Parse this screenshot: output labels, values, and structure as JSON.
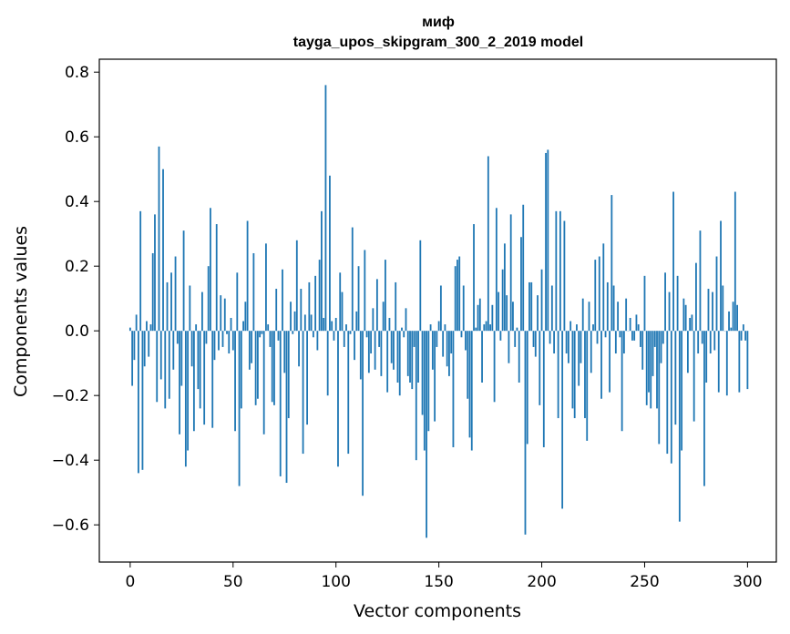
{
  "chart_data": {
    "type": "bar",
    "title": "миф",
    "subtitle": "tayga_upos_skipgram_300_2_2019 model",
    "xlabel": "Vector components",
    "ylabel": "Components values",
    "xlim": [
      -15,
      314
    ],
    "ylim": [
      -0.715,
      0.84
    ],
    "xticks": [
      0,
      50,
      100,
      150,
      200,
      250,
      300
    ],
    "xtick_labels": [
      "0",
      "50",
      "100",
      "150",
      "200",
      "250",
      "300"
    ],
    "yticks": [
      -0.6,
      -0.4,
      -0.2,
      0.0,
      0.2,
      0.4,
      0.6,
      0.8
    ],
    "ytick_labels": [
      "−0.6",
      "−0.4",
      "−0.2",
      "0.0",
      "0.2",
      "0.4",
      "0.6",
      "0.8"
    ],
    "bar_color": "#1f77b4",
    "grid": false,
    "legend": "none",
    "x_start": 0,
    "values": [
      0.01,
      -0.17,
      -0.09,
      0.05,
      -0.44,
      0.37,
      -0.43,
      -0.11,
      0.03,
      -0.08,
      0.02,
      0.24,
      0.36,
      -0.22,
      0.57,
      -0.15,
      0.5,
      -0.24,
      0.15,
      -0.21,
      0.18,
      -0.12,
      0.23,
      -0.04,
      -0.32,
      -0.17,
      0.31,
      -0.42,
      -0.37,
      0.14,
      -0.11,
      -0.31,
      0.02,
      -0.18,
      -0.24,
      0.12,
      -0.29,
      -0.04,
      0.2,
      0.38,
      -0.3,
      -0.09,
      0.33,
      -0.06,
      0.11,
      -0.05,
      0.1,
      -0.01,
      -0.07,
      0.04,
      -0.06,
      -0.31,
      0.18,
      -0.48,
      -0.24,
      0.03,
      0.09,
      0.34,
      -0.12,
      -0.1,
      0.24,
      -0.23,
      -0.21,
      -0.02,
      -0.01,
      -0.32,
      0.27,
      0.02,
      -0.05,
      -0.22,
      -0.23,
      0.13,
      -0.03,
      -0.45,
      0.19,
      -0.13,
      -0.47,
      -0.27,
      0.09,
      -0.01,
      0.06,
      0.28,
      -0.11,
      0.13,
      -0.38,
      0.05,
      -0.29,
      0.15,
      0.05,
      -0.02,
      0.17,
      -0.06,
      0.22,
      0.37,
      0.04,
      0.76,
      -0.2,
      0.48,
      0.03,
      -0.03,
      0.04,
      -0.42,
      0.18,
      0.12,
      -0.05,
      0.02,
      -0.38,
      -0.01,
      0.32,
      -0.09,
      0.06,
      0.2,
      -0.15,
      -0.51,
      0.25,
      -0.02,
      -0.13,
      -0.07,
      0.07,
      -0.12,
      0.16,
      -0.05,
      -0.14,
      0.09,
      0.22,
      -0.19,
      0.04,
      -0.1,
      -0.12,
      0.15,
      -0.16,
      -0.2,
      0.01,
      -0.02,
      0.07,
      -0.14,
      -0.16,
      -0.18,
      -0.05,
      -0.4,
      -0.16,
      0.28,
      -0.26,
      -0.37,
      -0.64,
      -0.31,
      0.02,
      -0.12,
      -0.28,
      -0.05,
      0.03,
      0.14,
      -0.08,
      0.02,
      -0.11,
      -0.14,
      -0.07,
      -0.36,
      0.2,
      0.22,
      0.23,
      -0.02,
      0.14,
      -0.06,
      -0.21,
      -0.33,
      -0.37,
      0.33,
      0.01,
      0.08,
      0.1,
      -0.16,
      0.02,
      0.03,
      0.54,
      0.02,
      0.08,
      -0.22,
      0.38,
      0.12,
      -0.03,
      0.19,
      0.27,
      0.11,
      -0.1,
      0.36,
      0.09,
      -0.05,
      0.01,
      -0.16,
      0.29,
      0.39,
      -0.63,
      -0.35,
      0.15,
      0.15,
      -0.05,
      -0.08,
      0.11,
      -0.23,
      0.19,
      -0.36,
      0.55,
      0.56,
      -0.04,
      0.14,
      -0.07,
      0.37,
      -0.27,
      0.37,
      -0.55,
      0.34,
      -0.07,
      -0.1,
      0.03,
      -0.24,
      -0.27,
      0.02,
      -0.17,
      -0.1,
      0.1,
      -0.27,
      -0.34,
      0.09,
      -0.13,
      0.02,
      0.22,
      -0.04,
      0.23,
      -0.21,
      0.27,
      -0.02,
      0.15,
      -0.19,
      0.42,
      0.14,
      -0.07,
      0.09,
      -0.02,
      -0.31,
      -0.07,
      0.1,
      0.0,
      0.04,
      -0.03,
      -0.03,
      0.05,
      0.02,
      -0.05,
      -0.12,
      0.17,
      -0.23,
      -0.19,
      -0.24,
      -0.14,
      -0.05,
      -0.24,
      -0.35,
      -0.1,
      -0.04,
      0.18,
      -0.38,
      0.12,
      -0.41,
      0.43,
      -0.29,
      0.17,
      -0.59,
      -0.37,
      0.1,
      0.08,
      -0.13,
      0.04,
      0.05,
      -0.28,
      0.21,
      -0.07,
      0.31,
      -0.04,
      -0.48,
      -0.16,
      0.13,
      -0.07,
      0.12,
      -0.06,
      0.23,
      -0.19,
      0.34,
      0.14,
      0.0,
      -0.2,
      0.06,
      0.01,
      0.09,
      0.43,
      0.08,
      -0.19,
      -0.03,
      0.02,
      -0.03,
      -0.18
    ]
  }
}
